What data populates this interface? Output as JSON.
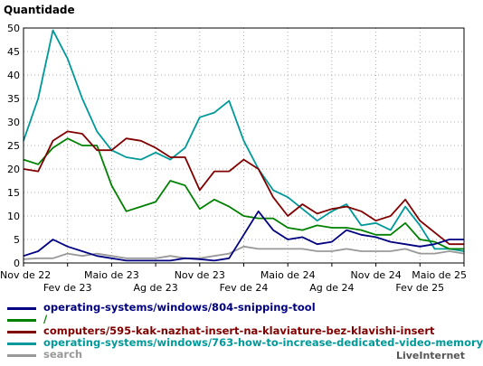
{
  "chart_data": {
    "type": "line",
    "title": "Quantidade",
    "ylim": [
      0,
      50
    ],
    "yticks": [
      0,
      5,
      10,
      15,
      20,
      25,
      30,
      35,
      40,
      45,
      50
    ],
    "grid": true,
    "legend_position": "bottom",
    "x": [
      "2022-11",
      "2022-12",
      "2023-01",
      "2023-02",
      "2023-03",
      "2023-04",
      "2023-05",
      "2023-06",
      "2023-07",
      "2023-08",
      "2023-09",
      "2023-10",
      "2023-11",
      "2023-12",
      "2024-01",
      "2024-02",
      "2024-03",
      "2024-04",
      "2024-05",
      "2024-06",
      "2024-07",
      "2024-08",
      "2024-09",
      "2024-10",
      "2024-11",
      "2024-12",
      "2025-01",
      "2025-02",
      "2025-03",
      "2025-04",
      "2025-05"
    ],
    "x_tick_labels_upper": [
      "Nov de 22",
      "Maio de 23",
      "Nov de 23",
      "Maio de 24",
      "Nov de 24",
      "Maio de 25"
    ],
    "x_tick_labels_lower": [
      "Fev de 23",
      "Ag de 23",
      "Fev de 24",
      "Ag de 24",
      "Fev de 25"
    ],
    "series": [
      {
        "name": "operating-systems/windows/804-snipping-tool",
        "color": "#000080",
        "values": [
          1.5,
          2.5,
          5,
          3.5,
          2.5,
          1.5,
          1,
          0.5,
          0.5,
          0.5,
          0.5,
          1,
          0.8,
          0.5,
          1,
          6,
          11,
          7,
          5,
          5.5,
          4,
          4.5,
          7,
          6,
          5.5,
          4.5,
          4,
          3.5,
          4,
          5,
          5
        ]
      },
      {
        "name": "/",
        "color": "#008000",
        "values": [
          22,
          21,
          24.5,
          26.5,
          25,
          25,
          16.5,
          11,
          12,
          13,
          17.5,
          16.5,
          11.5,
          13.5,
          12,
          10,
          9.5,
          9.5,
          7.5,
          7,
          8,
          7.5,
          7.5,
          7,
          6,
          6,
          8.5,
          5,
          4.5,
          3,
          3
        ]
      },
      {
        "name": "computers/595-kak-nazhat-insert-na-klaviature-bez-klavishi-insert",
        "color": "#800000",
        "values": [
          20,
          19.5,
          26,
          28,
          27.5,
          24,
          24,
          26.5,
          26,
          24.5,
          22.5,
          22.5,
          15.5,
          19.5,
          19.5,
          22,
          20,
          14,
          10,
          12.5,
          10.5,
          11.5,
          12,
          11,
          9,
          10,
          13.5,
          9,
          6.5,
          4,
          4
        ]
      },
      {
        "name": "operating-systems/windows/763-how-to-increase-dedicated-video-memory",
        "color": "#009999",
        "values": [
          26,
          35,
          49.5,
          43.5,
          35,
          28,
          24,
          22.5,
          22,
          23.5,
          22,
          24.5,
          31,
          32,
          34.5,
          26,
          20,
          15.5,
          14,
          11.5,
          9,
          11,
          12.5,
          8,
          8.5,
          7,
          12,
          8,
          3,
          3,
          2.5
        ]
      },
      {
        "name": "search",
        "color": "#999999",
        "values": [
          0.8,
          1,
          1,
          2,
          1.5,
          2,
          1.5,
          1,
          1,
          1,
          1.5,
          1,
          1,
          1.5,
          2,
          3.5,
          3,
          3,
          3,
          3,
          2.5,
          2.5,
          3,
          2.5,
          2.5,
          2.5,
          3,
          2,
          2,
          2.5,
          2
        ]
      }
    ]
  },
  "credit": "LiveInternet"
}
